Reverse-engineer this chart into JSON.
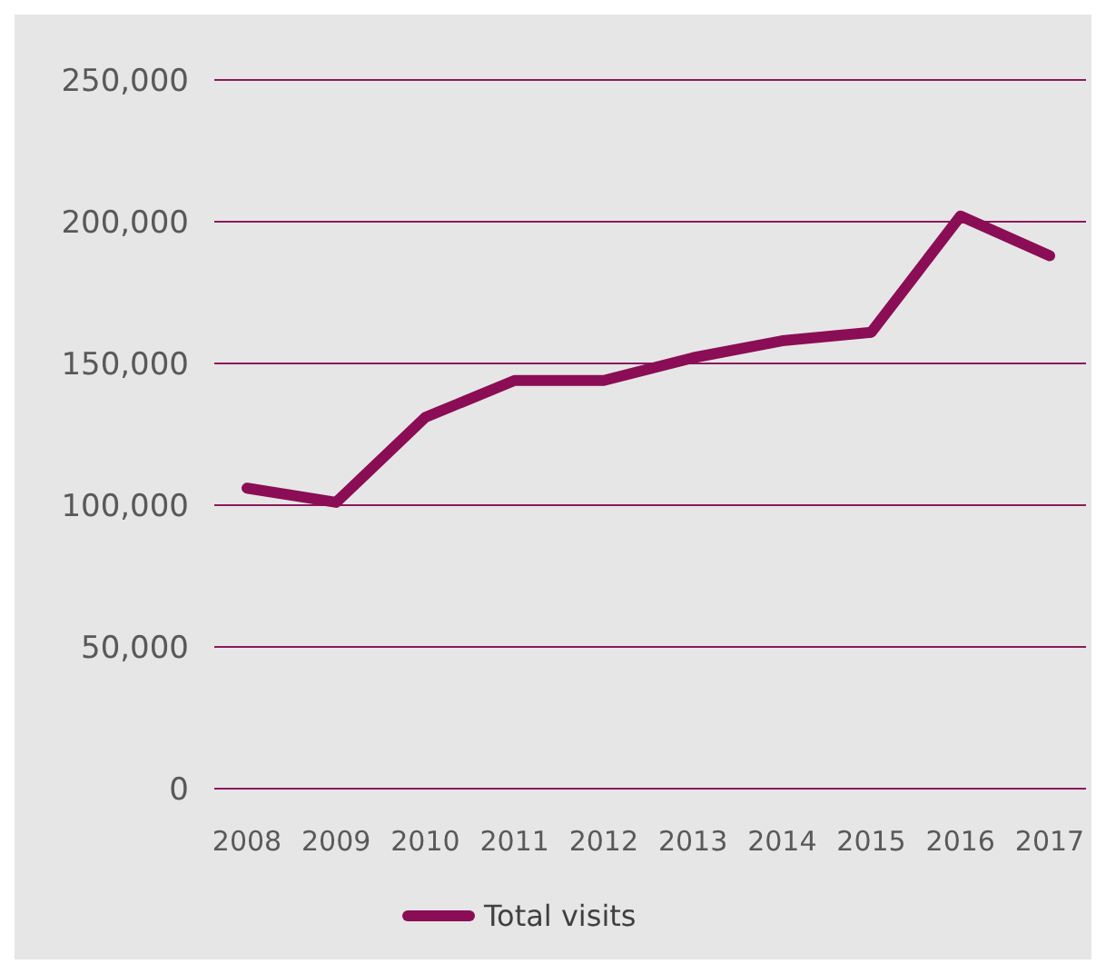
{
  "chart_data": {
    "type": "line",
    "categories": [
      "2008",
      "2009",
      "2010",
      "2011",
      "2012",
      "2013",
      "2014",
      "2015",
      "2016",
      "2017"
    ],
    "series": [
      {
        "name": "Total visits",
        "color": "#8b0d55",
        "values": [
          106000,
          101000,
          131000,
          144000,
          144000,
          152000,
          158000,
          161000,
          202000,
          188000
        ]
      }
    ],
    "ylim": [
      0,
      250000
    ],
    "yticks": [
      {
        "value": 0,
        "label": "0"
      },
      {
        "value": 50000,
        "label": "50,000"
      },
      {
        "value": 100000,
        "label": "100,000"
      },
      {
        "value": 150000,
        "label": "150,000"
      },
      {
        "value": 200000,
        "label": "200,000"
      },
      {
        "value": 250000,
        "label": "250,000"
      }
    ],
    "grid": "y",
    "legend": "bottom",
    "marker": "none",
    "line_style": "solid"
  }
}
